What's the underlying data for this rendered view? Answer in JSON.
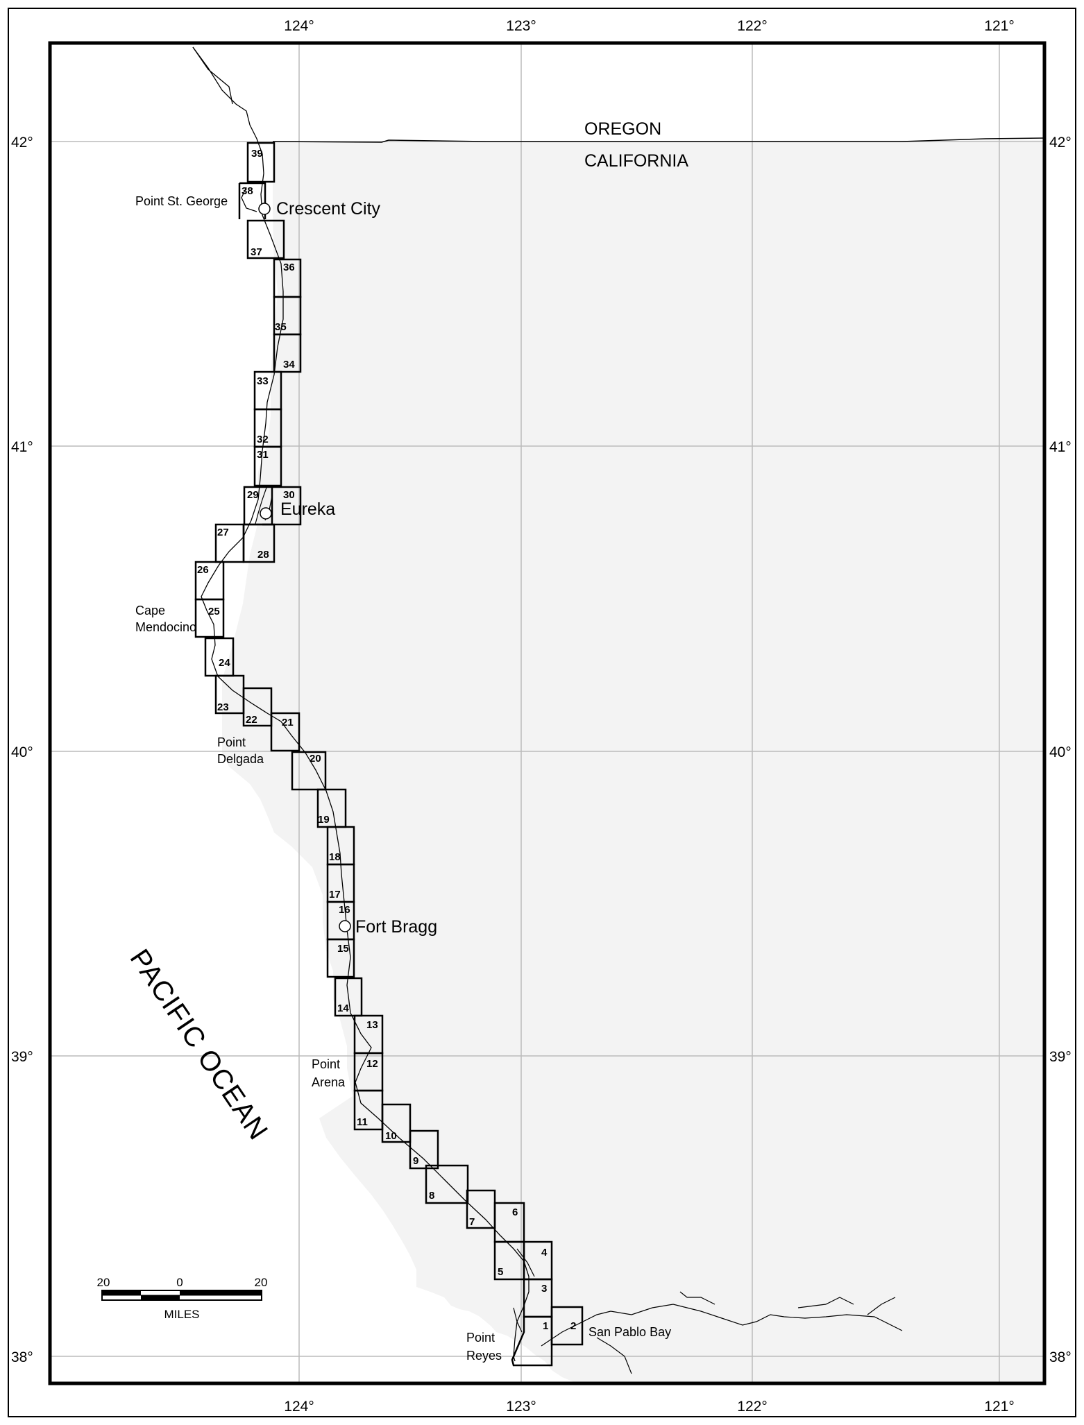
{
  "map": {
    "lon_labels": [
      "124°",
      "123°",
      "122°",
      "121°"
    ],
    "lat_labels": [
      "42°",
      "41°",
      "40°",
      "39°",
      "38°"
    ],
    "state_labels": [
      "OREGON",
      "CALIFORNIA"
    ],
    "ocean_label": "PACIFIC OCEAN",
    "places": [
      {
        "name": "Point St. George"
      },
      {
        "name": "Crescent City"
      },
      {
        "name": "Eureka"
      },
      {
        "name": "Cape"
      },
      {
        "name": "Mendocino"
      },
      {
        "name": "Point"
      },
      {
        "name": "Delgada"
      },
      {
        "name": "Fort Bragg"
      },
      {
        "name": "Point"
      },
      {
        "name": "Arena"
      },
      {
        "name": "Point"
      },
      {
        "name": "Reyes"
      },
      {
        "name": "San Pablo Bay"
      }
    ],
    "panel_numbers": [
      "1",
      "2",
      "3",
      "4",
      "5",
      "6",
      "7",
      "8",
      "9",
      "10",
      "11",
      "12",
      "13",
      "14",
      "15",
      "16",
      "17",
      "18",
      "19",
      "20",
      "21",
      "22",
      "23",
      "24",
      "25",
      "26",
      "27",
      "28",
      "29",
      "30",
      "31",
      "32",
      "33",
      "34",
      "35",
      "36",
      "37",
      "38",
      "39"
    ],
    "scale_bar": {
      "labels": [
        "20",
        "0",
        "20"
      ],
      "unit": "MILES"
    },
    "colors": {
      "land": "#f3f3f3",
      "water": "#ffffff",
      "grid": "#bbbbbb",
      "border": "#000000"
    }
  }
}
